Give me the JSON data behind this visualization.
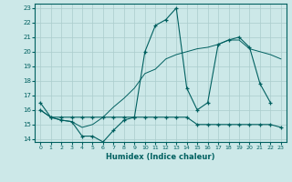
{
  "xlabel": "Humidex (Indice chaleur)",
  "xlim": [
    -0.5,
    23.5
  ],
  "ylim": [
    13.8,
    23.3
  ],
  "yticks": [
    14,
    15,
    16,
    17,
    18,
    19,
    20,
    21,
    22,
    23
  ],
  "xticks": [
    0,
    1,
    2,
    3,
    4,
    5,
    6,
    7,
    8,
    9,
    10,
    11,
    12,
    13,
    14,
    15,
    16,
    17,
    18,
    19,
    20,
    21,
    22,
    23
  ],
  "background_color": "#cce8e8",
  "grid_color": "#aacccc",
  "line_color": "#006060",
  "series1_x": [
    0,
    1,
    2,
    3,
    4,
    5,
    6,
    7,
    8,
    9,
    10,
    11,
    12,
    13,
    14,
    15,
    16,
    17,
    18,
    19,
    20,
    21,
    22
  ],
  "series1_y": [
    16.5,
    15.5,
    15.3,
    15.2,
    14.2,
    14.2,
    13.8,
    14.6,
    15.3,
    15.5,
    20.0,
    21.8,
    22.2,
    23.0,
    17.5,
    16.0,
    16.5,
    20.5,
    20.8,
    21.0,
    20.3,
    17.8,
    16.5
  ],
  "series2_x": [
    0,
    1,
    2,
    3,
    4,
    5,
    6,
    7,
    8,
    9,
    10,
    11,
    12,
    13,
    14,
    15,
    16,
    17,
    18,
    19,
    20,
    21,
    22,
    23
  ],
  "series2_y": [
    16.0,
    15.5,
    15.3,
    15.2,
    14.8,
    15.0,
    15.5,
    16.2,
    16.8,
    17.5,
    18.5,
    18.8,
    19.5,
    19.8,
    20.0,
    20.2,
    20.3,
    20.5,
    20.8,
    20.8,
    20.2,
    20.0,
    19.8,
    19.5
  ],
  "series3_x": [
    0,
    1,
    2,
    3,
    4,
    5,
    6,
    7,
    8,
    9,
    10,
    11,
    12,
    13,
    14,
    15,
    16,
    17,
    18,
    19,
    20,
    21,
    22,
    23
  ],
  "series3_y": [
    16.0,
    15.5,
    15.5,
    15.5,
    15.5,
    15.5,
    15.5,
    15.5,
    15.5,
    15.5,
    15.5,
    15.5,
    15.5,
    15.5,
    15.5,
    15.0,
    15.0,
    15.0,
    15.0,
    15.0,
    15.0,
    15.0,
    15.0,
    14.8
  ]
}
